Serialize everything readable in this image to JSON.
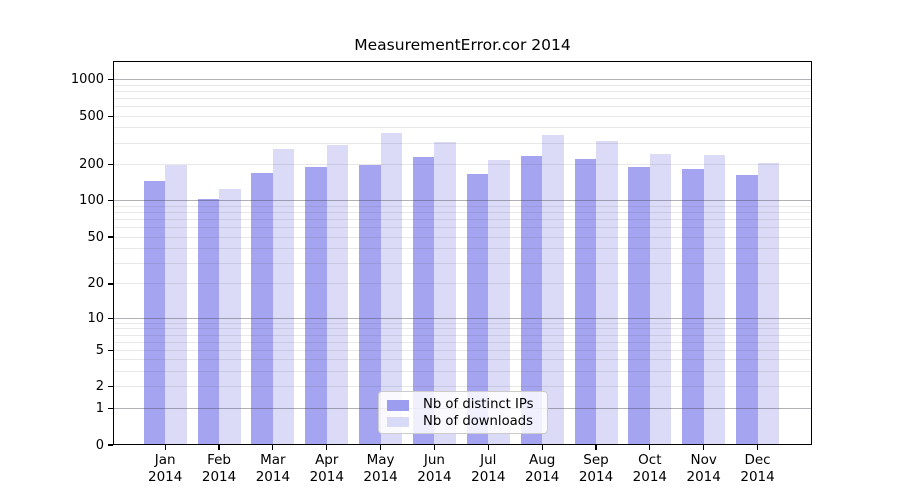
{
  "title": "MeasurementError.cor 2014",
  "legend": {
    "items": [
      {
        "label": "Nb of distinct IPs",
        "color": "#9d9df0"
      },
      {
        "label": "Nb of downloads",
        "color": "#d9d9f8"
      }
    ],
    "position": "lower center"
  },
  "axes": {
    "y_tick_labels": [
      "0",
      "1",
      "2",
      "5",
      "10",
      "20",
      "50",
      "100",
      "200",
      "500",
      "1000"
    ],
    "x_month_labels": [
      "Jan",
      "Feb",
      "Mar",
      "Apr",
      "May",
      "Jun",
      "Jul",
      "Aug",
      "Sep",
      "Oct",
      "Nov",
      "Dec"
    ],
    "x_year_label": "2014"
  },
  "chart_data": {
    "type": "bar",
    "title": "MeasurementError.cor 2014",
    "categories": [
      "Jan 2014",
      "Feb 2014",
      "Mar 2014",
      "Apr 2014",
      "May 2014",
      "Jun 2014",
      "Jul 2014",
      "Aug 2014",
      "Sep 2014",
      "Oct 2014",
      "Nov 2014",
      "Dec 2014"
    ],
    "series": [
      {
        "name": "Nb of distinct IPs",
        "color": "#9d9df0",
        "values": [
          145,
          104,
          170,
          190,
          197,
          231,
          168,
          235,
          224,
          192,
          183,
          165
        ]
      },
      {
        "name": "Nb of downloads",
        "color": "#d9d9f8",
        "values": [
          200,
          125,
          268,
          292,
          362,
          308,
          220,
          348,
          311,
          245,
          240,
          204
        ]
      }
    ],
    "xlabel": "",
    "ylabel": "",
    "yscale": "log1p",
    "yticks": [
      0,
      1,
      2,
      5,
      10,
      20,
      50,
      100,
      200,
      500,
      1000
    ],
    "ylim": [
      0,
      1420
    ],
    "grid": "major-and-minor-horizontal",
    "legend_position": "lower center",
    "bar_layout": "grouped-pair-centered-on-tick"
  }
}
